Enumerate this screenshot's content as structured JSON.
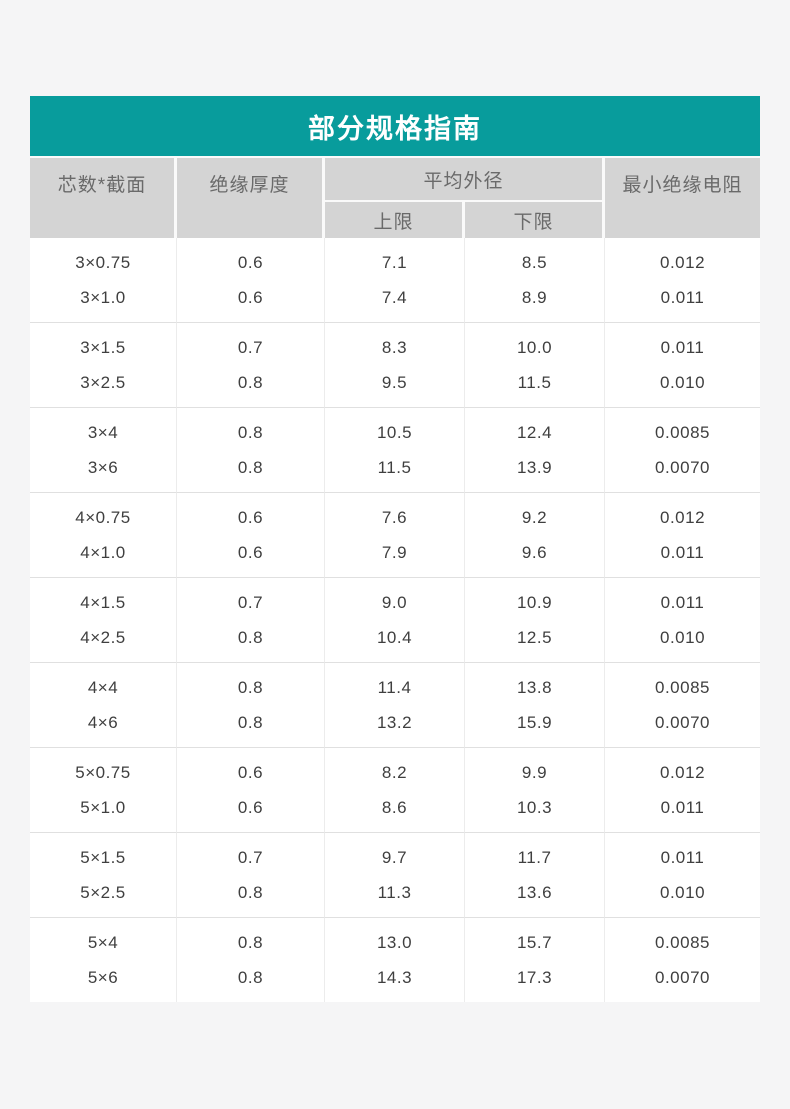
{
  "title": "部分规格指南",
  "colors": {
    "title_bar_bg": "#089c9c",
    "title_text": "#ffffff",
    "header_bg": "#d4d4d4",
    "header_text": "#6a6a6a",
    "body_text": "#3f3f3f",
    "page_bg": "#f5f5f6",
    "table_bg": "#ffffff",
    "divider": "#e0e0e0"
  },
  "table": {
    "columns": {
      "core_section": "芯数*截面",
      "insulation_thickness": "绝缘厚度",
      "avg_outer_diameter": "平均外径",
      "upper_limit": "上限",
      "lower_limit": "下限",
      "min_insulation_resistance": "最小绝缘电阻"
    },
    "groups": [
      {
        "rows": [
          [
            "3×0.75",
            "0.6",
            "7.1",
            "8.5",
            "0.012"
          ],
          [
            "3×1.0",
            "0.6",
            "7.4",
            "8.9",
            "0.011"
          ]
        ]
      },
      {
        "rows": [
          [
            "3×1.5",
            "0.7",
            "8.3",
            "10.0",
            "0.011"
          ],
          [
            "3×2.5",
            "0.8",
            "9.5",
            "11.5",
            "0.010"
          ]
        ]
      },
      {
        "rows": [
          [
            "3×4",
            "0.8",
            "10.5",
            "12.4",
            "0.0085"
          ],
          [
            "3×6",
            "0.8",
            "11.5",
            "13.9",
            "0.0070"
          ]
        ]
      },
      {
        "rows": [
          [
            "4×0.75",
            "0.6",
            "7.6",
            "9.2",
            "0.012"
          ],
          [
            "4×1.0",
            "0.6",
            "7.9",
            "9.6",
            "0.011"
          ]
        ]
      },
      {
        "rows": [
          [
            "4×1.5",
            "0.7",
            "9.0",
            "10.9",
            "0.011"
          ],
          [
            "4×2.5",
            "0.8",
            "10.4",
            "12.5",
            "0.010"
          ]
        ]
      },
      {
        "rows": [
          [
            "4×4",
            "0.8",
            "11.4",
            "13.8",
            "0.0085"
          ],
          [
            "4×6",
            "0.8",
            "13.2",
            "15.9",
            "0.0070"
          ]
        ]
      },
      {
        "rows": [
          [
            "5×0.75",
            "0.6",
            "8.2",
            "9.9",
            "0.012"
          ],
          [
            "5×1.0",
            "0.6",
            "8.6",
            "10.3",
            "0.011"
          ]
        ]
      },
      {
        "rows": [
          [
            "5×1.5",
            "0.7",
            "9.7",
            "11.7",
            "0.011"
          ],
          [
            "5×2.5",
            "0.8",
            "11.3",
            "13.6",
            "0.010"
          ]
        ]
      },
      {
        "rows": [
          [
            "5×4",
            "0.8",
            "13.0",
            "15.7",
            "0.0085"
          ],
          [
            "5×6",
            "0.8",
            "14.3",
            "17.3",
            "0.0070"
          ]
        ]
      }
    ]
  }
}
